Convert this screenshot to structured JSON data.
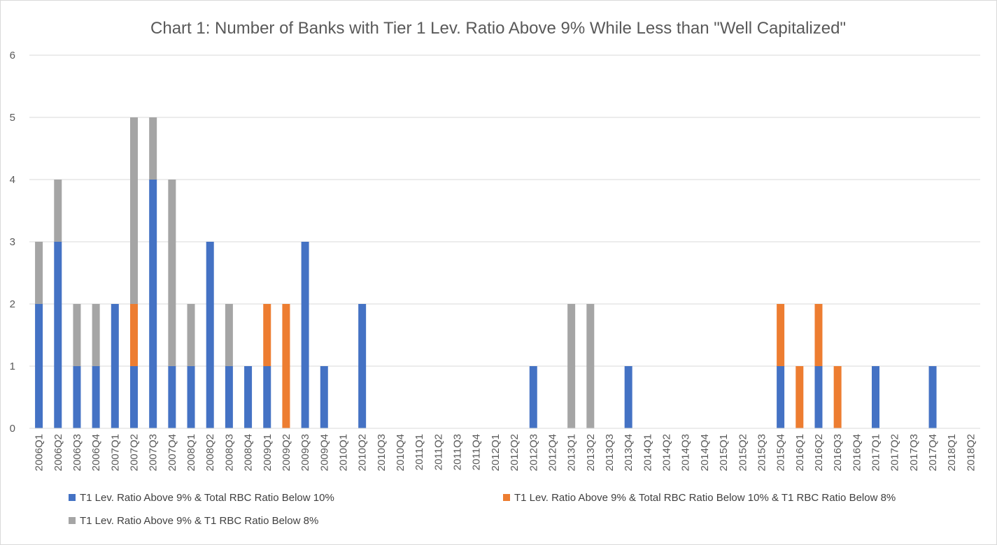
{
  "chart_data": {
    "type": "bar",
    "stacked": true,
    "title": "Chart 1: Number of Banks with Tier 1 Lev. Ratio Above 9% While Less than \"Well Capitalized\"",
    "xlabel": "",
    "ylabel": "",
    "ylim": [
      0,
      6
    ],
    "yticks": [
      "0",
      "1",
      "2",
      "3",
      "4",
      "5",
      "6"
    ],
    "grid": true,
    "legend_position": "bottom",
    "categories": [
      "2006Q1",
      "2006Q2",
      "2006Q3",
      "2006Q4",
      "2007Q1",
      "2007Q2",
      "2007Q3",
      "2007Q4",
      "2008Q1",
      "2008Q2",
      "2008Q3",
      "2008Q4",
      "2009Q1",
      "2009Q2",
      "2009Q3",
      "2009Q4",
      "2010Q1",
      "2010Q2",
      "2010Q3",
      "2010Q4",
      "2011Q1",
      "2011Q2",
      "2011Q3",
      "2011Q4",
      "2012Q1",
      "2012Q2",
      "2012Q3",
      "2012Q4",
      "2013Q1",
      "2013Q2",
      "2013Q3",
      "2013Q4",
      "2014Q1",
      "2014Q2",
      "2014Q3",
      "2014Q4",
      "2015Q1",
      "2015Q2",
      "2015Q3",
      "2015Q4",
      "2016Q1",
      "2016Q2",
      "2016Q3",
      "2016Q4",
      "2017Q1",
      "2017Q2",
      "2017Q3",
      "2017Q4",
      "2018Q1",
      "2018Q2"
    ],
    "series": [
      {
        "name": "T1 Lev. Ratio Above 9% & Total RBC Ratio Below 10%",
        "color": "#4472C4",
        "values": [
          2,
          3,
          1,
          1,
          2,
          1,
          4,
          1,
          1,
          3,
          1,
          1,
          1,
          0,
          3,
          1,
          0,
          2,
          0,
          0,
          0,
          0,
          0,
          0,
          0,
          0,
          1,
          0,
          0,
          0,
          0,
          1,
          0,
          0,
          0,
          0,
          0,
          0,
          0,
          1,
          0,
          1,
          0,
          0,
          1,
          0,
          0,
          1,
          0,
          0
        ]
      },
      {
        "name": "T1 Lev. Ratio Above 9% & Total RBC Ratio Below 10% & T1 RBC Ratio Below 8%",
        "color": "#ED7D31",
        "values": [
          0,
          0,
          0,
          0,
          0,
          1,
          0,
          0,
          0,
          0,
          0,
          0,
          1,
          2,
          0,
          0,
          0,
          0,
          0,
          0,
          0,
          0,
          0,
          0,
          0,
          0,
          0,
          0,
          0,
          0,
          0,
          0,
          0,
          0,
          0,
          0,
          0,
          0,
          0,
          1,
          1,
          1,
          1,
          0,
          0,
          0,
          0,
          0,
          0,
          0
        ]
      },
      {
        "name": "T1 Lev. Ratio Above 9% & T1 RBC Ratio Below 8%",
        "color": "#A5A5A5",
        "values": [
          1,
          1,
          1,
          1,
          0,
          3,
          1,
          3,
          1,
          0,
          1,
          0,
          0,
          0,
          0,
          0,
          0,
          0,
          0,
          0,
          0,
          0,
          0,
          0,
          0,
          0,
          0,
          0,
          2,
          2,
          0,
          0,
          0,
          0,
          0,
          0,
          0,
          0,
          0,
          0,
          0,
          0,
          0,
          0,
          0,
          0,
          0,
          0,
          0,
          0
        ]
      }
    ]
  }
}
